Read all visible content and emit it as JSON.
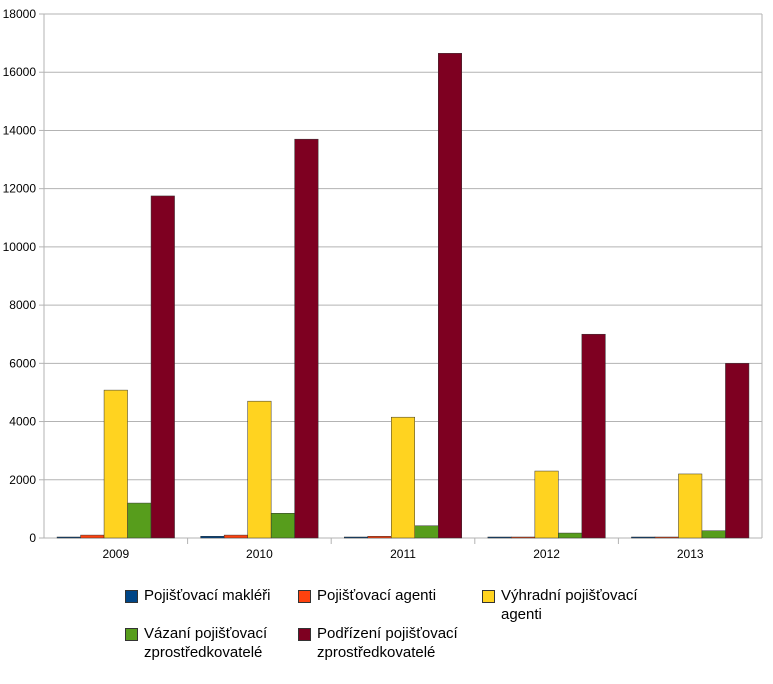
{
  "chart_data": {
    "type": "bar",
    "categories": [
      "2009",
      "2010",
      "2011",
      "2012",
      "2013"
    ],
    "series": [
      {
        "name": "Pojišťovací makléři",
        "color": "#004586",
        "values": [
          30,
          60,
          30,
          20,
          20
        ]
      },
      {
        "name": "Pojišťovací agenti",
        "color": "#ff420e",
        "values": [
          100,
          100,
          60,
          20,
          20
        ]
      },
      {
        "name": "Výhradní pojišťovací agenti",
        "color": "#ffd320",
        "values": [
          5080,
          4700,
          4150,
          2300,
          2200
        ]
      },
      {
        "name": "Vázaní pojišťovací zprostředkovatelé",
        "color": "#579d1c",
        "values": [
          1200,
          850,
          420,
          170,
          250
        ]
      },
      {
        "name": "Podřízení pojišťovací zprostředkovatelé",
        "color": "#7e0021",
        "values": [
          11750,
          13700,
          16650,
          7000,
          6000
        ]
      }
    ],
    "y_ticks": [
      "0",
      "2000",
      "4000",
      "6000",
      "8000",
      "10000",
      "12000",
      "14000",
      "16000",
      "18000"
    ],
    "ylim": [
      0,
      18000
    ],
    "grid": true,
    "legend_position": "bottom",
    "legend_labels": [
      "Pojišťovací makléři",
      "Pojišťovací agenti",
      "Výhradní pojišťovací\nagenti",
      "Vázaní pojišťovací\nzprostředkovatelé",
      "Podřízení pojišťovací\nzprostředkovatelé"
    ]
  }
}
